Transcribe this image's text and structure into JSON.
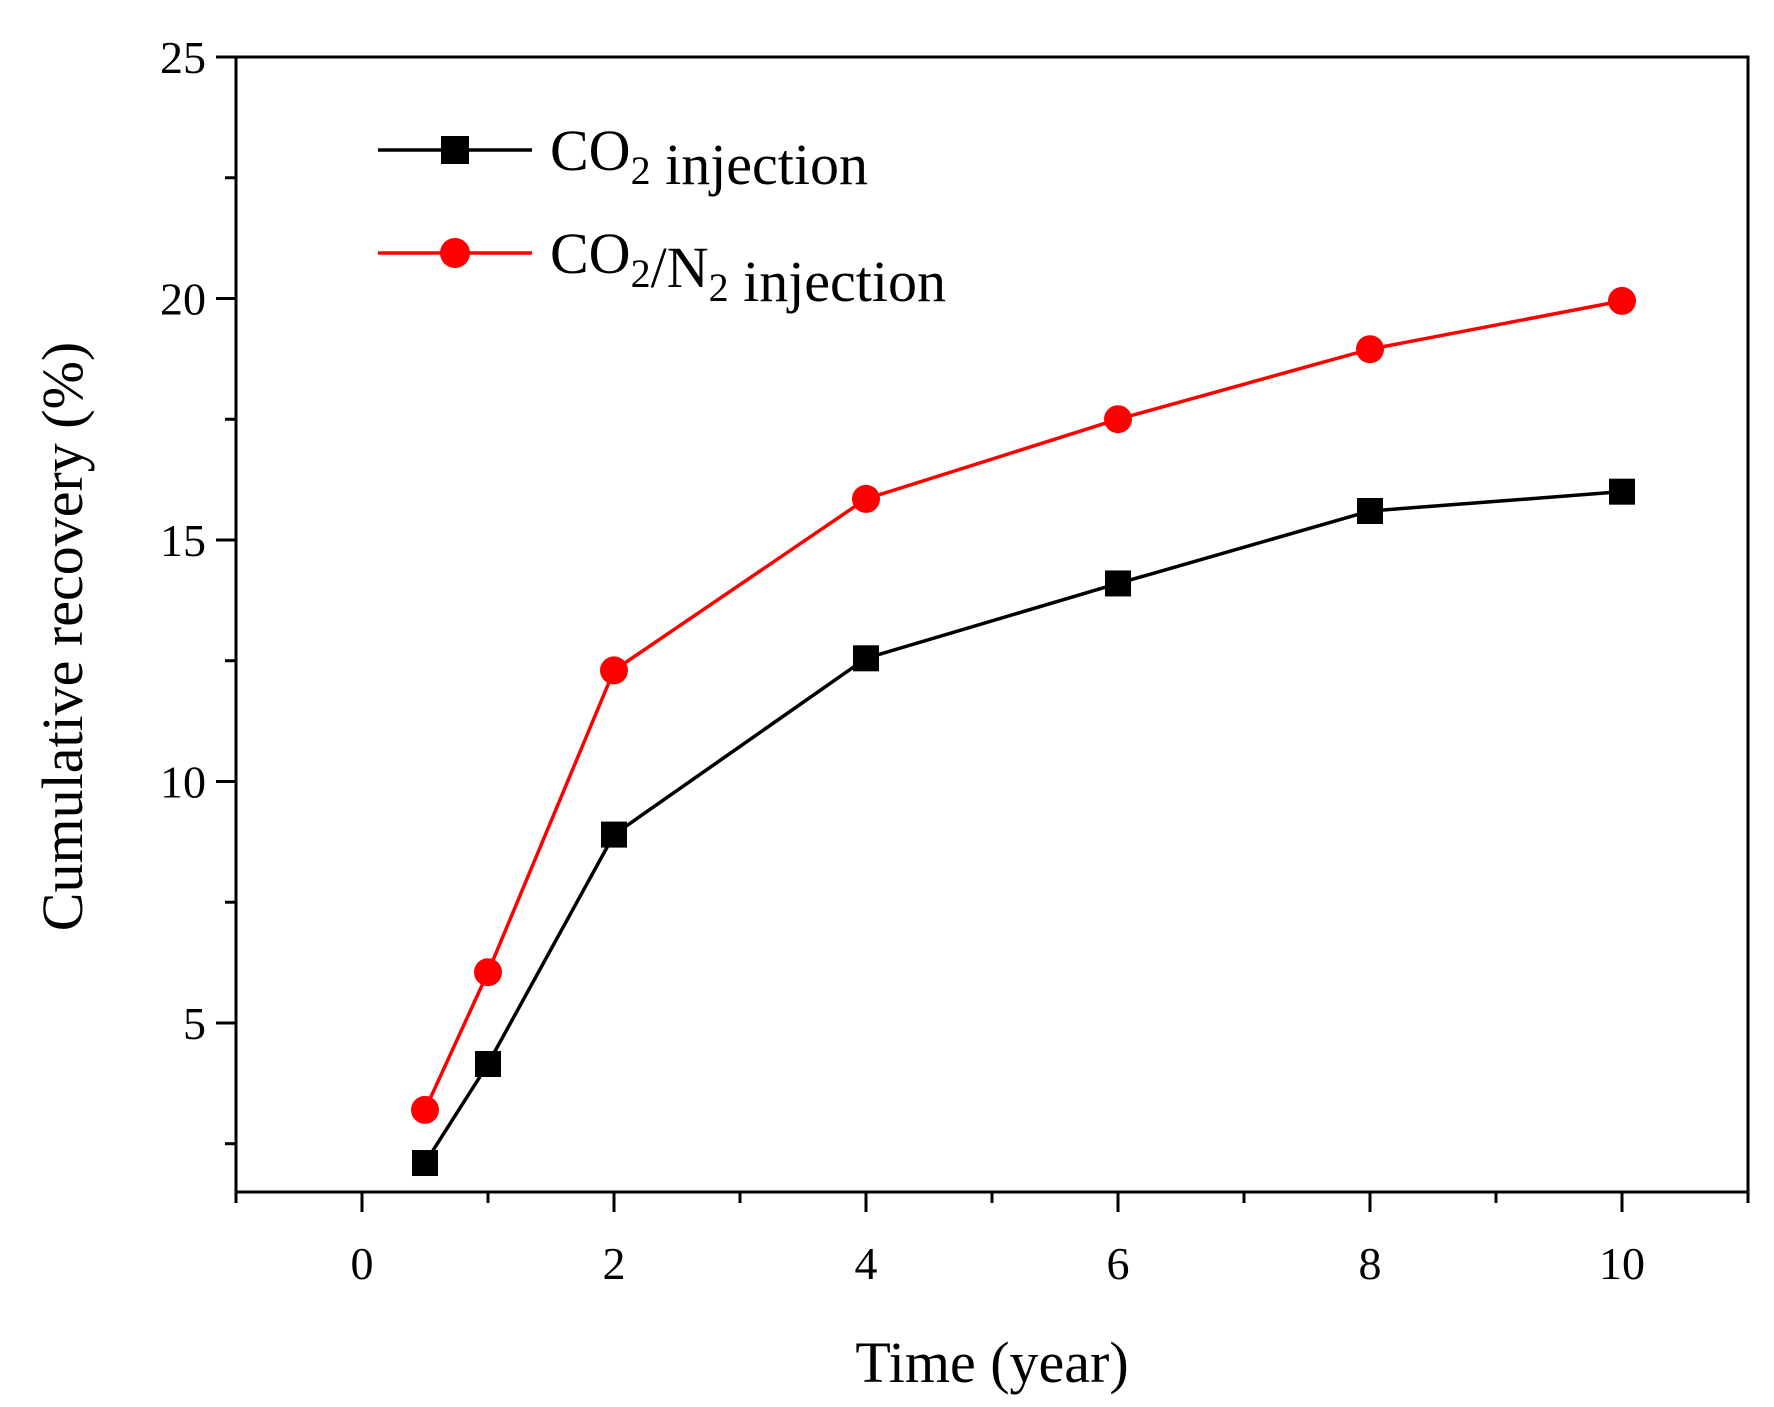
{
  "chart_data": {
    "type": "line",
    "title": "",
    "xlabel": "Time (year)",
    "ylabel": "Cumulative recovery (%)",
    "xlim": [
      -1,
      11
    ],
    "ylim": [
      1.5,
      25
    ],
    "x_ticks": [
      0,
      2,
      4,
      6,
      8,
      10
    ],
    "x_minor_ticks": [
      -1,
      1,
      3,
      5,
      7,
      9,
      11
    ],
    "y_ticks": [
      5,
      10,
      15,
      20,
      25
    ],
    "y_minor_ticks": [
      2.5,
      7.5,
      12.5,
      17.5,
      22.5
    ],
    "grid": false,
    "legend_position": "top-left",
    "series": [
      {
        "name": "CO2 injection",
        "legend": {
          "pre": "CO",
          "sub1": "2",
          "mid": "",
          "sub2": "",
          "post": " injection"
        },
        "marker": "square",
        "color": "#000000",
        "x": [
          0.5,
          1,
          2,
          4,
          6,
          8,
          10
        ],
        "y": [
          2.1,
          4.15,
          8.9,
          12.55,
          14.1,
          15.6,
          16.0
        ]
      },
      {
        "name": "CO2/N2 injection",
        "legend": {
          "pre": "CO",
          "sub1": "2",
          "mid": "/N",
          "sub2": "2",
          "post": " injection"
        },
        "marker": "circle",
        "color": "#ff0000",
        "x": [
          0.5,
          1,
          2,
          4,
          6,
          8,
          10
        ],
        "y": [
          3.2,
          6.05,
          12.3,
          15.85,
          17.5,
          18.95,
          19.95
        ]
      }
    ]
  }
}
